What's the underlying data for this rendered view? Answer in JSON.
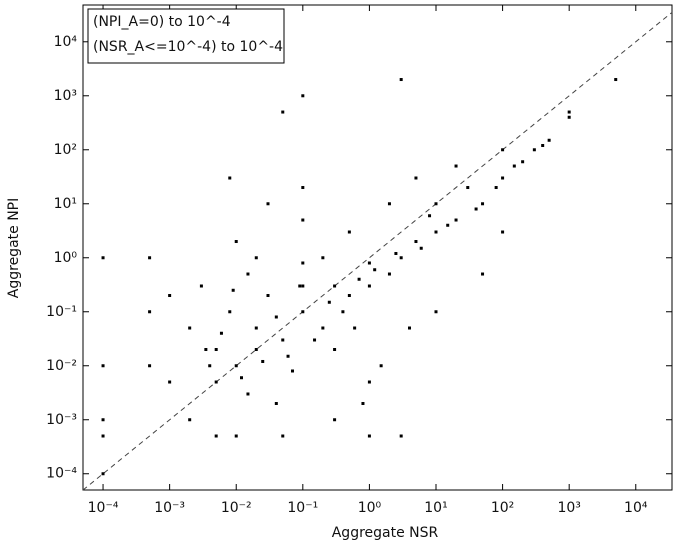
{
  "chart_data": {
    "type": "scatter",
    "x_label": "Aggregate NSR",
    "y_label": "Aggregate NPI",
    "annotations": [
      "(NPI_A=0) to 10^-4",
      "(NSR_A<=10^-4) to 10^-4"
    ],
    "x_scale": "log",
    "y_scale": "log",
    "grid": false,
    "legend": "upper left",
    "xlim": [
      5e-05,
      35000
    ],
    "ylim": [
      5e-05,
      48000
    ],
    "xticks": [
      {
        "value": 0.0001,
        "label": "10⁻⁴"
      },
      {
        "value": 0.001,
        "label": "10⁻³"
      },
      {
        "value": 0.01,
        "label": "10⁻²"
      },
      {
        "value": 0.1,
        "label": "10⁻¹"
      },
      {
        "value": 1,
        "label": "10⁰"
      },
      {
        "value": 10,
        "label": "10¹"
      },
      {
        "value": 100,
        "label": "10²"
      },
      {
        "value": 1000,
        "label": "10³"
      },
      {
        "value": 10000,
        "label": "10⁴"
      }
    ],
    "yticks": [
      {
        "value": 0.0001,
        "label": "10⁻⁴"
      },
      {
        "value": 0.001,
        "label": "10⁻³"
      },
      {
        "value": 0.01,
        "label": "10⁻²"
      },
      {
        "value": 0.1,
        "label": "10⁻¹"
      },
      {
        "value": 1,
        "label": "10⁰"
      },
      {
        "value": 10,
        "label": "10¹"
      },
      {
        "value": 100,
        "label": "10²"
      },
      {
        "value": 1000,
        "label": "10³"
      },
      {
        "value": 10000,
        "label": "10⁴"
      }
    ],
    "color": "#000000",
    "x": [
      0.002,
      0.005,
      0.01,
      0.02,
      0.05,
      0.1,
      0.2,
      0.5,
      1,
      0.003,
      0.008,
      0.03,
      0.07,
      0.3,
      0.015,
      0.04,
      0.6,
      2,
      3,
      5,
      10,
      20,
      50,
      100,
      200,
      500,
      1000,
      30,
      8,
      1,
      0.1,
      0.1,
      0.1,
      0.1,
      1.5,
      4,
      10,
      0.2,
      0.5,
      2,
      5,
      0.02,
      0.01,
      0.03,
      0.0001,
      0.0001,
      0.0001,
      0.0001,
      0.0005,
      0.0005,
      0.0005,
      0.002,
      0.005,
      0.01,
      0.05,
      1,
      3,
      0.3,
      0.8,
      1,
      0.1,
      0.05,
      3,
      1000,
      5000,
      300,
      100,
      10,
      0.3,
      20,
      50,
      100,
      0.015,
      0.001,
      0.001,
      0.02,
      0.005,
      0.008,
      0.0001,
      0.004,
      0.006,
      0.04,
      0.15,
      0.25,
      0.4,
      0.7,
      1.2,
      2.5,
      6,
      15,
      40,
      80,
      150,
      400,
      0.012,
      0.025,
      0.06,
      0.09,
      0.009,
      0.0035
    ],
    "values": [
      0.05,
      0.02,
      0.01,
      0.05,
      0.03,
      0.1,
      0.05,
      0.2,
      0.3,
      0.3,
      0.1,
      0.2,
      0.008,
      0.02,
      0.003,
      0.002,
      0.05,
      0.5,
      1,
      2,
      3,
      5,
      10,
      30,
      60,
      150,
      400,
      20,
      6,
      0.8,
      0.8,
      5,
      20,
      0.3,
      0.01,
      0.05,
      0.1,
      1,
      3,
      10,
      30,
      1,
      2,
      10,
      0.01,
      1,
      0.0005,
      0.001,
      0.1,
      1,
      0.01,
      0.001,
      0.0005,
      0.0005,
      0.0005,
      0.0005,
      0.0005,
      0.001,
      0.002,
      0.005,
      1000,
      500,
      2000,
      500,
      2000,
      100,
      100,
      10,
      0.3,
      50,
      0.5,
      3,
      0.5,
      0.2,
      0.005,
      0.02,
      0.005,
      30,
      0.0001,
      0.01,
      0.04,
      0.08,
      0.03,
      0.15,
      0.1,
      0.4,
      0.6,
      1.2,
      1.5,
      4,
      8,
      20,
      50,
      120,
      0.006,
      0.012,
      0.015,
      0.3,
      0.25,
      0.02
    ]
  }
}
